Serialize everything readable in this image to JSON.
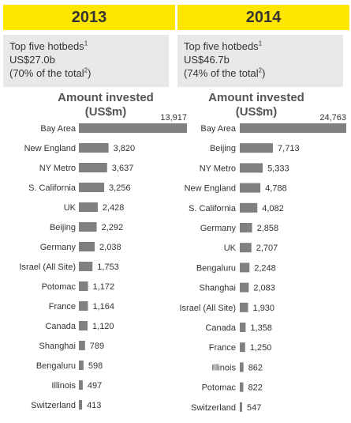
{
  "panels": [
    {
      "year": "2013",
      "summary": {
        "line1": "Top five hotbeds",
        "line1_sup": "1",
        "line2": "US$27.0b",
        "line3_pre": "(70% of the total",
        "line3_sup": "2",
        "line3_post": ")"
      },
      "chart_title_line1": "Amount invested",
      "chart_title_line2": "(US$m)"
    },
    {
      "year": "2014",
      "summary": {
        "line1": "Top five hotbeds",
        "line1_sup": "1",
        "line2": "US$46.7b",
        "line3_pre": "(74% of the total",
        "line3_sup": "2",
        "line3_post": ")"
      },
      "chart_title_line1": "Amount invested",
      "chart_title_line2": "(US$m)"
    }
  ],
  "colors": {
    "accent": "#ffe600",
    "bar": "#808080",
    "summary_bg": "#e8e8e8"
  },
  "chart_data": [
    {
      "type": "bar",
      "orientation": "horizontal",
      "title": "Amount invested (US$m)",
      "categories": [
        "Bay Area",
        "New England",
        "NY Metro",
        "S. California",
        "UK",
        "Beijing",
        "Germany",
        "Israel (All Site)",
        "Potomac",
        "France",
        "Canada",
        "Shanghai",
        "Bengaluru",
        "Illinois",
        "Switzerland"
      ],
      "values": [
        13917,
        3820,
        3637,
        3256,
        2428,
        2292,
        2038,
        1753,
        1172,
        1164,
        1120,
        789,
        598,
        497,
        413
      ],
      "value_labels": [
        "13,917",
        "3,820",
        "3,637",
        "3,256",
        "2,428",
        "2,292",
        "2,038",
        "1,753",
        "1,172",
        "1,164",
        "1,120",
        "789",
        "598",
        "497",
        "413"
      ]
    },
    {
      "type": "bar",
      "orientation": "horizontal",
      "title": "Amount invested (US$m)",
      "categories": [
        "Bay Area",
        "Beijing",
        "NY Metro",
        "New England",
        "S. California",
        "Germany",
        "UK",
        "Bengaluru",
        "Shanghai",
        "Israel (All Site)",
        "Canada",
        "France",
        "Illinois",
        "Potomac",
        "Switzerland"
      ],
      "values": [
        24763,
        7713,
        5333,
        4788,
        4082,
        2858,
        2707,
        2248,
        2083,
        1930,
        1358,
        1250,
        862,
        822,
        547
      ],
      "value_labels": [
        "24,763",
        "7,713",
        "5,333",
        "4,788",
        "4,082",
        "2,858",
        "2,707",
        "2,248",
        "2,083",
        "1,930",
        "1,358",
        "1,250",
        "862",
        "822",
        "547"
      ]
    }
  ]
}
